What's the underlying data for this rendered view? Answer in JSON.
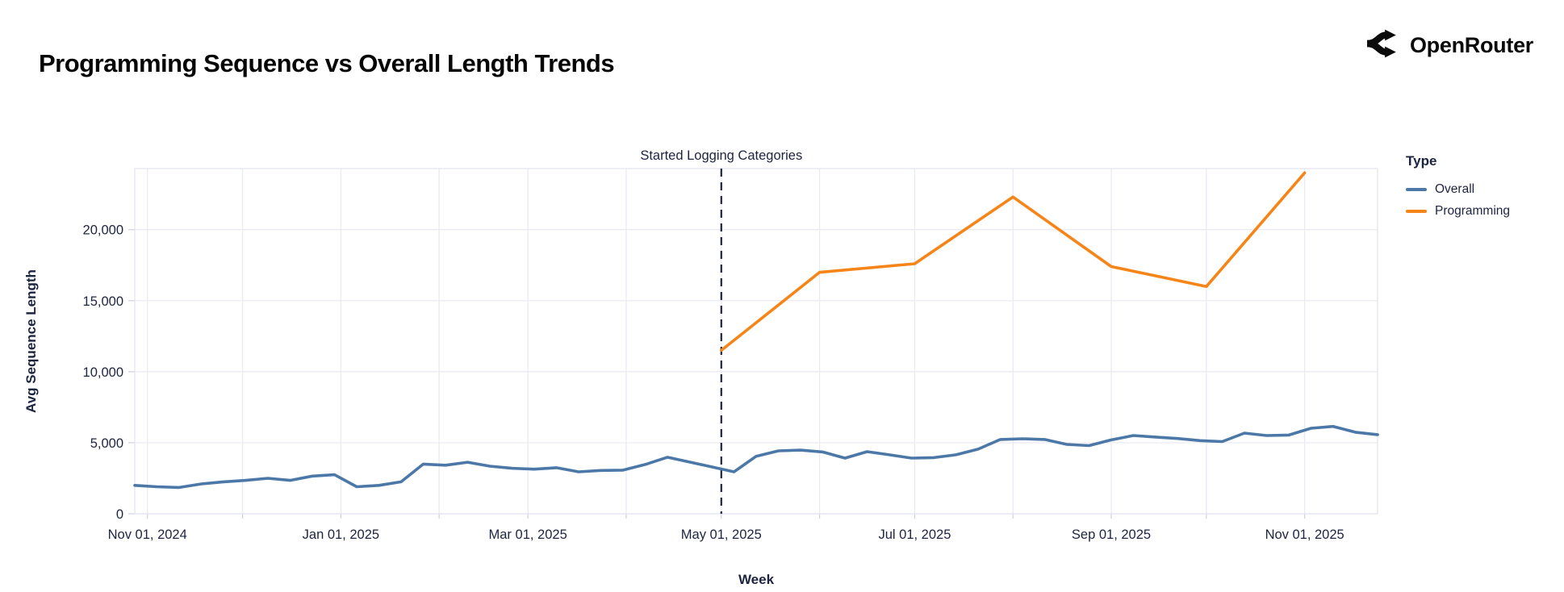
{
  "header": {
    "title": "Programming Sequence vs Overall Length Trends",
    "brand": "OpenRouter"
  },
  "legend": {
    "title": "Type",
    "entries": [
      {
        "label": "Overall",
        "color": "#4c78a8"
      },
      {
        "label": "Programming",
        "color": "#f58518"
      }
    ]
  },
  "colors": {
    "overall_line": "#4c78a8",
    "programming_line": "#f58518",
    "gridline": "#e9e9f1",
    "plot_border": "#e3e3ee",
    "tick_mark": "#cfcfdc",
    "chart_text": "#1d2440",
    "annotation_rule": "#1c2442",
    "background": "#ffffff"
  },
  "chart_data": {
    "type": "line",
    "title": "Programming Sequence vs Overall Length Trends",
    "xlabel": "Week",
    "ylabel": "Avg Sequence Length",
    "grid": true,
    "legend_position": "right",
    "xlim": [
      "2024-10-28",
      "2025-11-24"
    ],
    "ylim": [
      0,
      24300
    ],
    "y_ticks": [
      0,
      5000,
      10000,
      15000,
      20000
    ],
    "y_tick_labels": [
      "0",
      "5,000",
      "10,000",
      "15,000",
      "20,000"
    ],
    "x_ticks": [
      {
        "date": "2024-11-01",
        "label": "Nov 01, 2024"
      },
      {
        "date": "2025-01-01",
        "label": "Jan 01, 2025"
      },
      {
        "date": "2025-03-01",
        "label": "Mar 01, 2025"
      },
      {
        "date": "2025-05-01",
        "label": "May 01, 2025"
      },
      {
        "date": "2025-07-01",
        "label": "Jul 01, 2025"
      },
      {
        "date": "2025-09-01",
        "label": "Sep 01, 2025"
      },
      {
        "date": "2025-11-01",
        "label": "Nov 01, 2025"
      }
    ],
    "x_gridline_dates": [
      "2024-11-01",
      "2024-12-01",
      "2025-01-01",
      "2025-02-01",
      "2025-03-01",
      "2025-04-01",
      "2025-05-01",
      "2025-06-01",
      "2025-07-01",
      "2025-08-01",
      "2025-09-01",
      "2025-10-01",
      "2025-11-01"
    ],
    "annotation": {
      "label": "Started Logging Categories",
      "date": "2025-05-01",
      "style": "dashed-vertical-rule"
    },
    "series": [
      {
        "name": "Overall",
        "color": "#4c78a8",
        "x": [
          "2024-10-28",
          "2024-11-04",
          "2024-11-11",
          "2024-11-18",
          "2024-11-25",
          "2024-12-02",
          "2024-12-09",
          "2024-12-16",
          "2024-12-23",
          "2024-12-30",
          "2025-01-06",
          "2025-01-13",
          "2025-01-20",
          "2025-01-27",
          "2025-02-03",
          "2025-02-10",
          "2025-02-17",
          "2025-02-24",
          "2025-03-03",
          "2025-03-10",
          "2025-03-17",
          "2025-03-24",
          "2025-03-31",
          "2025-04-07",
          "2025-04-14",
          "2025-04-21",
          "2025-04-28",
          "2025-05-05",
          "2025-05-12",
          "2025-05-19",
          "2025-05-26",
          "2025-06-02",
          "2025-06-09",
          "2025-06-16",
          "2025-06-23",
          "2025-06-30",
          "2025-07-07",
          "2025-07-14",
          "2025-07-21",
          "2025-07-28",
          "2025-08-04",
          "2025-08-11",
          "2025-08-18",
          "2025-08-25",
          "2025-09-01",
          "2025-09-08",
          "2025-09-15",
          "2025-09-22",
          "2025-09-29",
          "2025-10-06",
          "2025-10-13",
          "2025-10-20",
          "2025-10-27",
          "2025-11-03",
          "2025-11-10",
          "2025-11-17",
          "2025-11-24"
        ],
        "values": [
          2000,
          1900,
          1850,
          2100,
          2250,
          2350,
          2500,
          2350,
          2650,
          2750,
          1900,
          2000,
          2250,
          3500,
          3420,
          3630,
          3350,
          3200,
          3140,
          3240,
          2950,
          3050,
          3070,
          3470,
          3980,
          3640,
          3300,
          2950,
          4050,
          4430,
          4480,
          4350,
          3920,
          4370,
          4150,
          3920,
          3950,
          4150,
          4550,
          5230,
          5280,
          5230,
          4880,
          4800,
          5200,
          5510,
          5400,
          5300,
          5150,
          5080,
          5680,
          5510,
          5540,
          6020,
          6150,
          5740,
          5570
        ]
      },
      {
        "name": "Programming",
        "color": "#f58518",
        "x": [
          "2025-05-01",
          "2025-06-01",
          "2025-07-01",
          "2025-08-01",
          "2025-09-01",
          "2025-10-01",
          "2025-11-01"
        ],
        "values": [
          11500,
          17000,
          17600,
          22300,
          17400,
          16000,
          24000
        ]
      }
    ]
  }
}
